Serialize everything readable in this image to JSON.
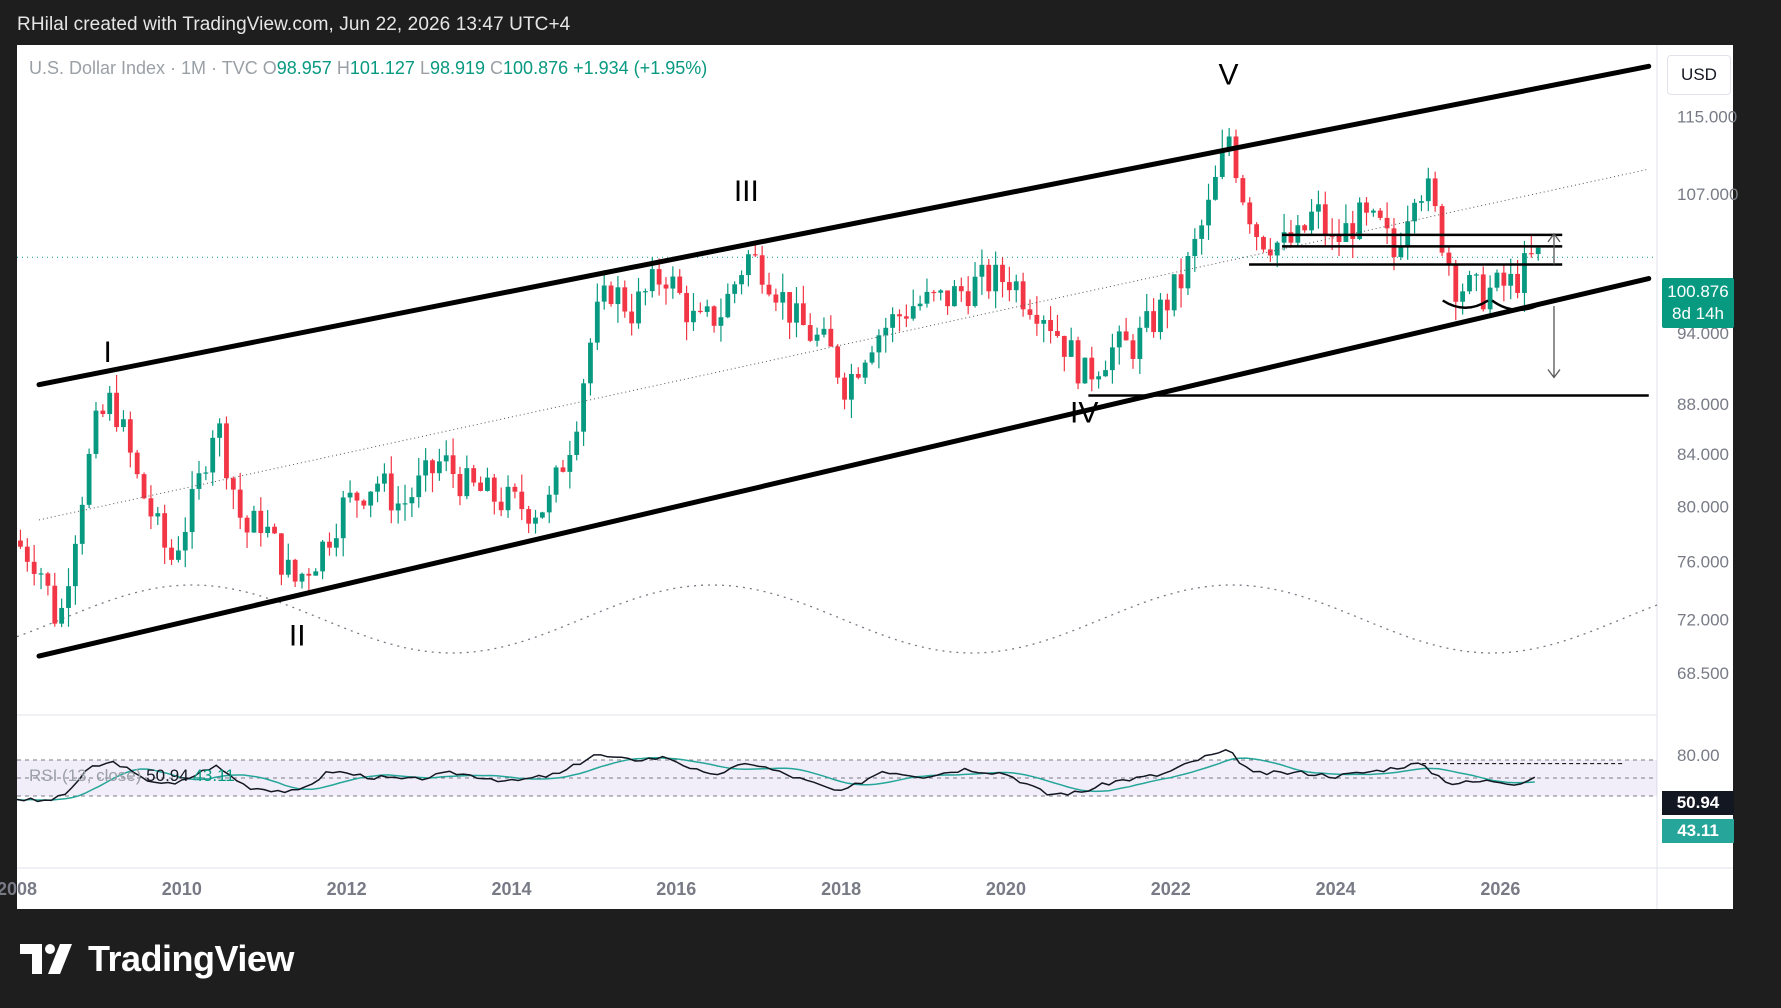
{
  "header": {
    "caption": "RHilal created with TradingView.com, Jun 22, 2026 13:47 UTC+4"
  },
  "legend": {
    "symbol": "U.S. Dollar Index · 1M · TVC",
    "open_label": "O",
    "open": "98.957",
    "high_label": "H",
    "high": "101.127",
    "low_label": "L",
    "low": "98.919",
    "close_label": "C",
    "close": "100.876",
    "change": "+1.934 (+1.95%)"
  },
  "currency": "USD",
  "price_badge": {
    "price": "100.876",
    "countdown": "8d 14h"
  },
  "rsi": {
    "label": "RSI (13, close)",
    "value": "50.94",
    "ma_value": "43.11"
  },
  "brand": {
    "name": "TradingView"
  },
  "colors": {
    "up": "#089981",
    "down": "#f23645",
    "rsi_line": "#131722",
    "rsi_ma": "#26a69a",
    "rsi_band": "#7e57c2",
    "channel": "#000000"
  },
  "chart_data": {
    "type": "candlestick",
    "interval": "1M",
    "x_range": [
      2008,
      2027.9
    ],
    "y_range": [
      66.5,
      122
    ],
    "y_scale": "log",
    "x_ticks": [
      "2008",
      "2010",
      "2012",
      "2014",
      "2016",
      "2018",
      "2020",
      "2022",
      "2024",
      "2026"
    ],
    "y_ticks": [
      "115.000",
      "107.000",
      "100.876",
      "94.000",
      "88.000",
      "84.000",
      "80.000",
      "76.000",
      "72.000",
      "68.500"
    ],
    "anchors": [
      [
        2008.0,
        77.5
      ],
      [
        2008.3,
        76.0
      ],
      [
        2008.55,
        71.5
      ],
      [
        2008.8,
        80.0
      ],
      [
        2009.0,
        86.0
      ],
      [
        2009.2,
        88.5
      ],
      [
        2009.5,
        82.0
      ],
      [
        2009.9,
        76.0
      ],
      [
        2010.2,
        80.5
      ],
      [
        2010.45,
        87.0
      ],
      [
        2010.8,
        78.0
      ],
      [
        2011.0,
        79.0
      ],
      [
        2011.4,
        74.5
      ],
      [
        2011.7,
        76.5
      ],
      [
        2012.0,
        80.0
      ],
      [
        2012.4,
        82.0
      ],
      [
        2012.7,
        80.0
      ],
      [
        2013.2,
        83.5
      ],
      [
        2013.5,
        81.5
      ],
      [
        2013.9,
        80.5
      ],
      [
        2014.3,
        79.8
      ],
      [
        2014.5,
        80.2
      ],
      [
        2014.8,
        86.0
      ],
      [
        2015.05,
        95.0
      ],
      [
        2015.25,
        98.0
      ],
      [
        2015.5,
        96.0
      ],
      [
        2015.9,
        99.5
      ],
      [
        2016.3,
        94.5
      ],
      [
        2016.6,
        96.0
      ],
      [
        2016.9,
        101.0
      ],
      [
        2017.1,
        100.0
      ],
      [
        2017.5,
        95.0
      ],
      [
        2017.9,
        92.5
      ],
      [
        2018.1,
        89.5
      ],
      [
        2018.4,
        93.5
      ],
      [
        2018.9,
        96.5
      ],
      [
        2019.3,
        97.0
      ],
      [
        2019.7,
        98.5
      ],
      [
        2020.1,
        99.0
      ],
      [
        2020.25,
        97.5
      ],
      [
        2020.5,
        96.0
      ],
      [
        2020.85,
        92.0
      ],
      [
        2021.0,
        90.3
      ],
      [
        2021.3,
        92.5
      ],
      [
        2021.6,
        93.0
      ],
      [
        2021.9,
        95.8
      ],
      [
        2022.2,
        99.0
      ],
      [
        2022.5,
        105.5
      ],
      [
        2022.75,
        113.0
      ],
      [
        2022.9,
        107.5
      ],
      [
        2023.1,
        103.0
      ],
      [
        2023.4,
        102.0
      ],
      [
        2023.6,
        102.5
      ],
      [
        2023.8,
        105.5
      ],
      [
        2024.0,
        102.0
      ],
      [
        2024.3,
        104.5
      ],
      [
        2024.6,
        103.5
      ],
      [
        2024.75,
        101.0
      ],
      [
        2025.0,
        108.0
      ],
      [
        2025.15,
        107.5
      ],
      [
        2025.3,
        103.5
      ],
      [
        2025.5,
        98.5
      ],
      [
        2025.8,
        97.5
      ],
      [
        2026.0,
        98.0
      ],
      [
        2026.2,
        98.5
      ],
      [
        2026.45,
        100.876
      ]
    ],
    "channel": {
      "upper": [
        [
          2008.0,
          89.6
        ],
        [
          2027.8,
          120.5
        ]
      ],
      "lower": [
        [
          2008.0,
          69.6
        ],
        [
          2027.8,
          98.9
        ]
      ],
      "mid": [
        [
          2008.0,
          79.0
        ],
        [
          2027.8,
          109.5
        ]
      ]
    },
    "horizontal_levels": [
      {
        "y": 103.0,
        "from": 2023.35,
        "to": 2026.75
      },
      {
        "y": 101.9,
        "from": 2023.35,
        "to": 2026.75
      },
      {
        "y": 100.2,
        "from": 2022.95,
        "to": 2026.75
      },
      {
        "y": 88.7,
        "from": 2021.0,
        "to": 2027.8
      }
    ],
    "wave_labels": [
      {
        "text": "I",
        "x": 2009.1,
        "y": 91.5
      },
      {
        "text": "II",
        "x": 2011.4,
        "y": 70.3
      },
      {
        "text": "III",
        "x": 2016.85,
        "y": 106.3
      },
      {
        "text": "IV",
        "x": 2020.95,
        "y": 86.5
      },
      {
        "text": "V",
        "x": 2022.7,
        "y": 118.5
      }
    ],
    "rsi": {
      "range": [
        20,
        80
      ],
      "bands": [
        30,
        50,
        70
      ],
      "anchors": [
        [
          2008.0,
          27
        ],
        [
          2008.3,
          24
        ],
        [
          2008.55,
          29
        ],
        [
          2008.9,
          62
        ],
        [
          2009.2,
          68
        ],
        [
          2009.5,
          50
        ],
        [
          2009.9,
          42
        ],
        [
          2010.4,
          64
        ],
        [
          2010.8,
          40
        ],
        [
          2011.4,
          34
        ],
        [
          2011.8,
          58
        ],
        [
          2012.3,
          51
        ],
        [
          2012.8,
          48
        ],
        [
          2013.3,
          56
        ],
        [
          2014.0,
          46
        ],
        [
          2014.6,
          55
        ],
        [
          2015.0,
          76
        ],
        [
          2015.4,
          70
        ],
        [
          2015.9,
          73
        ],
        [
          2016.4,
          52
        ],
        [
          2016.9,
          67
        ],
        [
          2017.4,
          52
        ],
        [
          2018.0,
          34
        ],
        [
          2018.5,
          58
        ],
        [
          2019.0,
          52
        ],
        [
          2019.5,
          60
        ],
        [
          2020.0,
          55
        ],
        [
          2020.5,
          32
        ],
        [
          2020.9,
          34
        ],
        [
          2021.3,
          46
        ],
        [
          2021.9,
          54
        ],
        [
          2022.4,
          73
        ],
        [
          2022.7,
          80
        ],
        [
          2023.0,
          55
        ],
        [
          2023.6,
          56
        ],
        [
          2024.0,
          52
        ],
        [
          2024.5,
          58
        ],
        [
          2025.0,
          66
        ],
        [
          2025.4,
          44
        ],
        [
          2025.9,
          47
        ],
        [
          2026.2,
          44
        ],
        [
          2026.45,
          50.94
        ]
      ]
    }
  }
}
